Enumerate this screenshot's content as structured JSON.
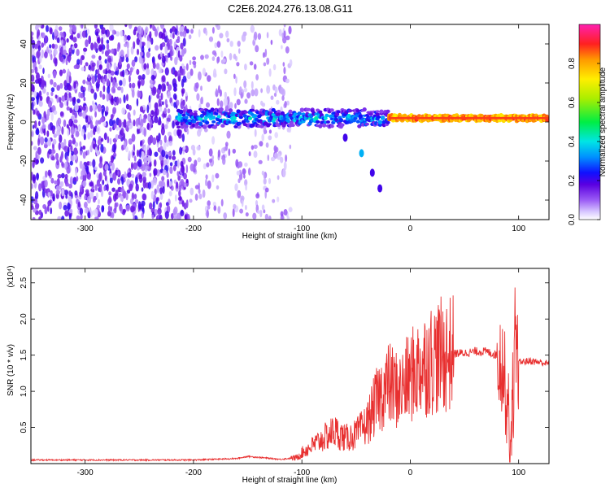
{
  "title": "C2E6.2024.276.13.08.G11",
  "chart_data": [
    {
      "type": "heatmap",
      "xlabel": "Height of straight line (km)",
      "ylabel": "Frequency (Hz)",
      "xlim": [
        -350,
        128
      ],
      "ylim": [
        -50,
        50
      ],
      "xticks": [
        -300,
        -200,
        -100,
        0,
        100
      ],
      "xtick_labels": [
        "-300",
        "-200",
        "-100",
        "0",
        "100"
      ],
      "yticks": [
        -40,
        -20,
        0,
        20,
        40
      ],
      "ytick_labels": [
        "-40",
        "-20",
        "0",
        "20",
        "40"
      ],
      "colorbar": {
        "label": "Normalized spectral amplitude",
        "range": [
          0,
          1
        ],
        "ticks": [
          0.0,
          0.2,
          0.4,
          0.6,
          0.8
        ],
        "tick_labels": [
          "0.0",
          "0.2",
          "0.4",
          "0.6",
          "0.8"
        ]
      },
      "features": {
        "carrier_line_hz": 2,
        "noise_region_end_km": -120,
        "dense_noise_end_km": -205,
        "branch_points": [
          [
            -60,
            -8
          ],
          [
            -45,
            -16
          ],
          [
            -35,
            -26
          ],
          [
            -28,
            -34
          ]
        ]
      }
    },
    {
      "type": "line",
      "xlabel": "Height of straight line (km)",
      "ylabel": "SNR (10 * v/v)",
      "y_multiplier": "(x10⁴)",
      "xlim": [
        -350,
        128
      ],
      "ylim": [
        0,
        2.7
      ],
      "xticks": [
        -300,
        -200,
        -100,
        0,
        100
      ],
      "xtick_labels": [
        "-300",
        "-200",
        "-100",
        "0",
        "100"
      ],
      "yticks": [
        0.5,
        1.0,
        1.5,
        2.0,
        2.5
      ],
      "ytick_labels": [
        "0.5",
        "1.0",
        "1.5",
        "2.0",
        "2.5"
      ],
      "series": [
        {
          "color": "#e83030",
          "x": [
            -350,
            -300,
            -250,
            -200,
            -160,
            -150,
            -120,
            -105,
            -100,
            -90,
            -80,
            -70,
            -60,
            -50,
            -40,
            -30,
            -20,
            -10,
            0,
            10,
            20,
            30,
            40,
            50,
            60,
            70,
            80,
            85,
            90,
            92,
            95,
            98,
            100,
            110,
            120,
            128
          ],
          "y": [
            0.05,
            0.05,
            0.05,
            0.05,
            0.07,
            0.1,
            0.06,
            0.08,
            0.15,
            0.25,
            0.35,
            0.45,
            0.35,
            0.4,
            0.55,
            0.9,
            1.1,
            1.0,
            1.2,
            1.35,
            1.45,
            1.5,
            1.52,
            1.53,
            1.55,
            1.55,
            1.5,
            1.4,
            0.8,
            0.2,
            1.0,
            1.5,
            1.4,
            1.42,
            1.4,
            1.38
          ]
        }
      ]
    }
  ]
}
